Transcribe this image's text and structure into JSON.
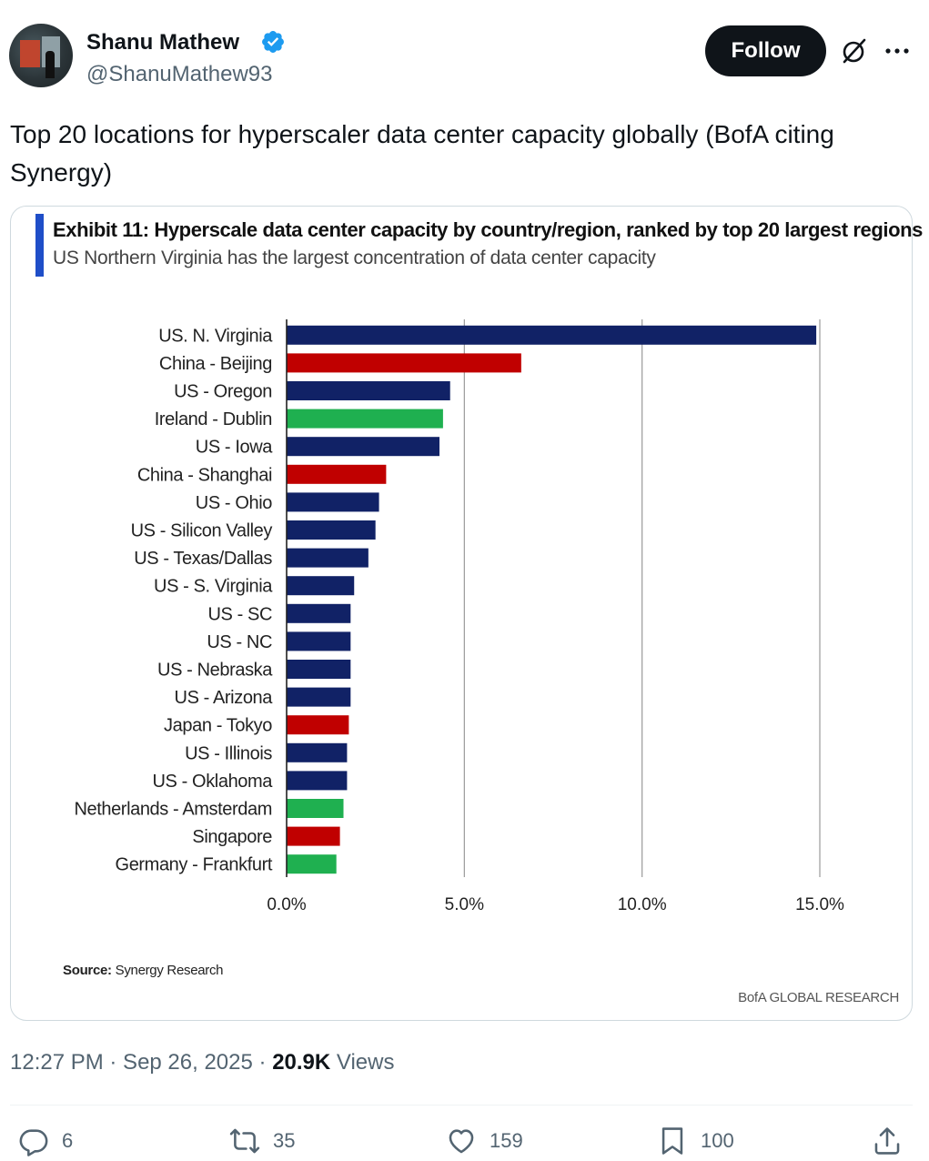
{
  "author": {
    "name": "Shanu Mathew",
    "handle": "@ShanuMathew93",
    "verified": true
  },
  "header": {
    "follow_label": "Follow",
    "grok_icon": "grok-icon",
    "more_icon": "more-icon"
  },
  "tweet": {
    "text": "Top 20 locations for hyperscaler data center capacity globally (BofA citing Synergy)"
  },
  "chart": {
    "title": "Exhibit 11: Hyperscale data center capacity by country/region, ranked by top 20 largest regions",
    "subtitle": "US Northern Virginia has the largest concentration of data center capacity",
    "source_label": "Source:",
    "source_text": "Synergy Research",
    "brand": "BofA GLOBAL RESEARCH",
    "accent_color": "#1f4ec8"
  },
  "chart_data": {
    "type": "bar",
    "orientation": "horizontal",
    "categories": [
      "US. N. Virginia",
      "China - Beijing",
      "US - Oregon",
      "Ireland - Dublin",
      "US - Iowa",
      "China - Shanghai",
      "US - Ohio",
      "US - Silicon Valley",
      "US - Texas/Dallas",
      "US - S. Virginia",
      "US - SC",
      "US - NC",
      "US - Nebraska",
      "US - Arizona",
      "Japan - Tokyo",
      "US - Illinois",
      "US - Oklahoma",
      "Netherlands - Amsterdam",
      "Singapore",
      "Germany - Frankfurt"
    ],
    "values": [
      14.9,
      6.6,
      4.6,
      4.4,
      4.3,
      2.8,
      2.6,
      2.5,
      2.3,
      1.9,
      1.8,
      1.8,
      1.8,
      1.8,
      1.75,
      1.7,
      1.7,
      1.6,
      1.5,
      1.4
    ],
    "colors": [
      "#112266",
      "#c00000",
      "#112266",
      "#1fb050",
      "#112266",
      "#c00000",
      "#112266",
      "#112266",
      "#112266",
      "#112266",
      "#112266",
      "#112266",
      "#112266",
      "#112266",
      "#c00000",
      "#112266",
      "#112266",
      "#1fb050",
      "#c00000",
      "#1fb050"
    ],
    "xlim": [
      0,
      15
    ],
    "xticks": [
      0,
      5,
      10,
      15
    ],
    "xtick_labels": [
      "0.0%",
      "5.0%",
      "10.0%",
      "15.0%"
    ],
    "grid": "vertical"
  },
  "meta": {
    "time": "12:27 PM · Sep 26, 2025 · ",
    "views_count": "20.9K",
    "views_label": " Views"
  },
  "actions": {
    "replies": "6",
    "reposts": "35",
    "likes": "159",
    "bookmarks": "100"
  }
}
